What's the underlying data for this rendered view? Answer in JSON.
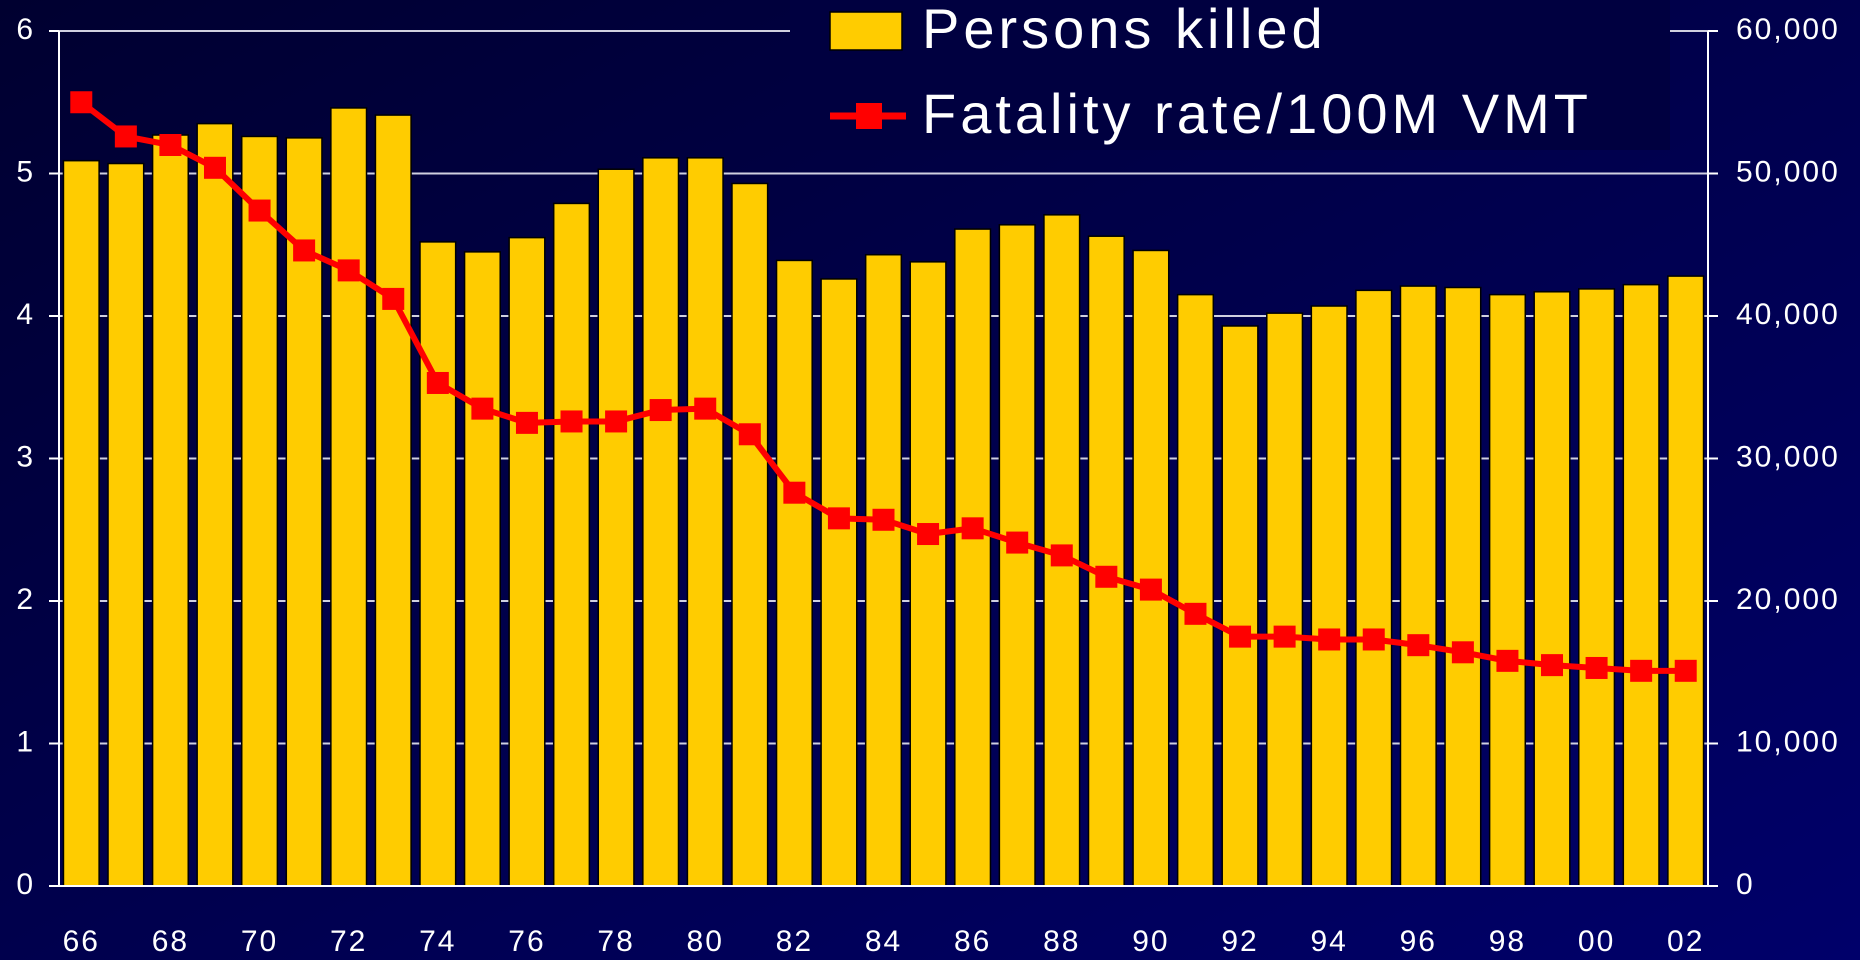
{
  "chart_data": {
    "type": "bar",
    "categories": [
      "66",
      null,
      "68",
      null,
      "70",
      null,
      "72",
      null,
      "74",
      null,
      "76",
      null,
      "78",
      null,
      "80",
      null,
      "82",
      null,
      "84",
      null,
      "86",
      null,
      "88",
      null,
      "90",
      null,
      "92",
      null,
      "94",
      null,
      "96",
      null,
      "98",
      null,
      "00",
      null,
      "02"
    ],
    "series": [
      {
        "name": "Persons killed",
        "type": "bar",
        "axis": "y2",
        "color": "#ffcc00",
        "values": [
          50900,
          50700,
          52700,
          53500,
          52600,
          52500,
          54600,
          54100,
          45200,
          44500,
          45500,
          47900,
          50300,
          51100,
          51100,
          49300,
          43900,
          42600,
          44300,
          43800,
          46100,
          46400,
          47100,
          45600,
          44600,
          41500,
          39300,
          40200,
          40700,
          41800,
          42100,
          42000,
          41500,
          41700,
          41900,
          42200,
          42800
        ]
      },
      {
        "name": "Fatality rate/100M VMT",
        "type": "line",
        "axis": "y",
        "color": "#ff0000",
        "values": [
          5.5,
          5.26,
          5.2,
          5.04,
          4.74,
          4.46,
          4.32,
          4.12,
          3.53,
          3.35,
          3.25,
          3.26,
          3.26,
          3.34,
          3.35,
          3.17,
          2.76,
          2.58,
          2.57,
          2.47,
          2.51,
          2.41,
          2.32,
          2.17,
          2.08,
          1.91,
          1.75,
          1.75,
          1.73,
          1.73,
          1.69,
          1.64,
          1.58,
          1.55,
          1.53,
          1.51,
          1.51
        ]
      }
    ],
    "ylim": [
      0,
      6
    ],
    "yticks": [
      0,
      1,
      2,
      3,
      4,
      5,
      6
    ],
    "y2lim": [
      0,
      60000
    ],
    "y2ticks": [
      0,
      {
        "value": 10000,
        "label": "10,000"
      },
      {
        "value": 20000,
        "label": "20,000"
      },
      {
        "value": 30000,
        "label": "30,000"
      },
      {
        "value": 40000,
        "label": "40,000"
      },
      {
        "value": 50000,
        "label": "50,000"
      },
      {
        "value": 60000,
        "label": "60,000"
      }
    ],
    "grid": true,
    "legend": "top"
  }
}
